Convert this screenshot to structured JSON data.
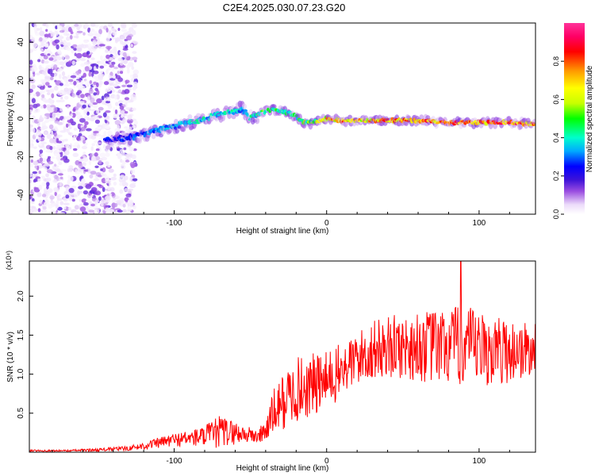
{
  "title": "C2E4.2025.030.07.23.G20",
  "chart_data": [
    {
      "type": "heatmap",
      "xlabel": "Height of straight line (km)",
      "ylabel": "Frequency (Hz)",
      "xlim": [
        -195,
        137
      ],
      "ylim": [
        -50,
        50
      ],
      "xticks": [
        -100,
        0,
        100
      ],
      "yticks": [
        -40,
        -20,
        0,
        20,
        40
      ],
      "colorbar": {
        "label": "Normalized spectral amplitude",
        "range": [
          0,
          1
        ],
        "ticks": [
          "0.0",
          "0.2",
          "0.4",
          "0.6",
          "0.8"
        ],
        "colors": [
          "#ffffff",
          "#ecdcfa",
          "#9a4de0",
          "#3d12d8",
          "#0000ff",
          "#00aaff",
          "#00ffcc",
          "#00ff00",
          "#c8ff00",
          "#ffff00",
          "#ff9900",
          "#ff0000",
          "#ff0066",
          "#ff3399"
        ]
      },
      "signal_track": {
        "x": [
          -145,
          -130,
          -120,
          -110,
          -100,
          -90,
          -80,
          -70,
          -60,
          -55,
          -50,
          -45,
          -40,
          -35,
          -30,
          -25,
          -20,
          -15,
          -10,
          0,
          10,
          20,
          40,
          60,
          80,
          100,
          120,
          137
        ],
        "frequency": [
          -11,
          -10,
          -8,
          -6,
          -4,
          -2,
          0,
          2,
          4,
          5,
          0,
          2,
          4,
          5,
          4,
          3,
          1,
          -2,
          -2,
          0,
          -1,
          -1,
          -1,
          -1,
          -2,
          -2,
          -2,
          -3
        ],
        "amplitude": [
          0.3,
          0.35,
          0.35,
          0.4,
          0.4,
          0.45,
          0.45,
          0.45,
          0.45,
          0.4,
          0.45,
          0.5,
          0.55,
          0.55,
          0.55,
          0.5,
          0.5,
          0.55,
          0.55,
          0.75,
          0.8,
          0.75,
          0.8,
          0.8,
          0.85,
          0.8,
          0.85,
          0.8
        ]
      }
    },
    {
      "type": "line",
      "xlabel": "Height of straight line (km)",
      "ylabel": "SNR (10 * v/v)",
      "yscale_note": "(x10⁴)",
      "xlim": [
        -195,
        137
      ],
      "ylim": [
        0,
        2.45
      ],
      "xticks": [
        -100,
        0,
        100
      ],
      "yticks": [
        "0.5",
        "1.0",
        "1.5",
        "2.0"
      ],
      "color": "#ff0000",
      "envelope": {
        "x": [
          -195,
          -170,
          -150,
          -130,
          -120,
          -110,
          -100,
          -90,
          -80,
          -70,
          -60,
          -50,
          -45,
          -40,
          -35,
          -30,
          -25,
          -20,
          -10,
          0,
          10,
          20,
          30,
          40,
          50,
          60,
          70,
          80,
          90,
          100,
          110,
          120,
          130,
          137
        ],
        "mean": [
          0.02,
          0.02,
          0.03,
          0.05,
          0.08,
          0.12,
          0.16,
          0.18,
          0.2,
          0.26,
          0.25,
          0.22,
          0.2,
          0.28,
          0.5,
          0.62,
          0.7,
          0.8,
          0.85,
          0.9,
          1.05,
          1.2,
          1.3,
          1.35,
          1.35,
          1.35,
          1.35,
          1.35,
          1.35,
          1.3,
          1.3,
          1.3,
          1.3,
          1.3
        ],
        "spread": [
          0.01,
          0.01,
          0.02,
          0.03,
          0.05,
          0.07,
          0.09,
          0.1,
          0.14,
          0.22,
          0.15,
          0.1,
          0.1,
          0.15,
          0.3,
          0.35,
          0.4,
          0.42,
          0.42,
          0.4,
          0.35,
          0.35,
          0.38,
          0.4,
          0.42,
          0.45,
          0.48,
          0.5,
          0.55,
          0.5,
          0.45,
          0.42,
          0.38,
          0.35
        ]
      },
      "peak": {
        "x": 88,
        "y": 2.45
      }
    }
  ]
}
